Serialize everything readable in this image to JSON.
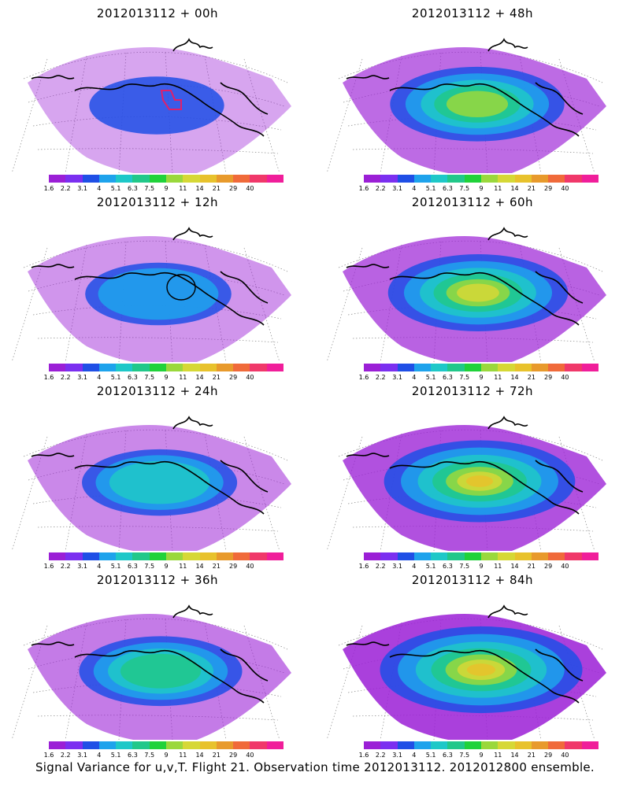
{
  "panels": [
    {
      "title": "2012013112 + 00h",
      "intensity": 0.2,
      "extra_contour": "magenta"
    },
    {
      "title": "2012013112 + 48h",
      "intensity": 0.55,
      "extra_contour": ""
    },
    {
      "title": "2012013112 + 12h",
      "intensity": 0.3,
      "extra_contour": "black"
    },
    {
      "title": "2012013112 + 60h",
      "intensity": 0.6,
      "extra_contour": ""
    },
    {
      "title": "2012013112 + 24h",
      "intensity": 0.38,
      "extra_contour": ""
    },
    {
      "title": "2012013112 + 72h",
      "intensity": 0.7,
      "extra_contour": ""
    },
    {
      "title": "2012013112 + 36h",
      "intensity": 0.45,
      "extra_contour": ""
    },
    {
      "title": "2012013112 + 84h",
      "intensity": 0.8,
      "extra_contour": ""
    }
  ],
  "colorbar": {
    "labels": [
      "1.6",
      "2.2",
      "3.1",
      "4",
      "5.1",
      "6.3",
      "7.5",
      "9",
      "11",
      "14",
      "21",
      "29",
      "40"
    ],
    "colors": [
      "#9b1fd6",
      "#7b2ff0",
      "#1f4fe6",
      "#1ea3ec",
      "#1ec8c8",
      "#21c88a",
      "#20d23a",
      "#9ad83c",
      "#d6d836",
      "#e8c22c",
      "#e89a2c",
      "#f06a3a",
      "#f0386a",
      "#f01e9a"
    ]
  },
  "footer": "Signal Variance for u,v,T. Flight 21. Observation time 2012013112. 2012012800 ensemble."
}
